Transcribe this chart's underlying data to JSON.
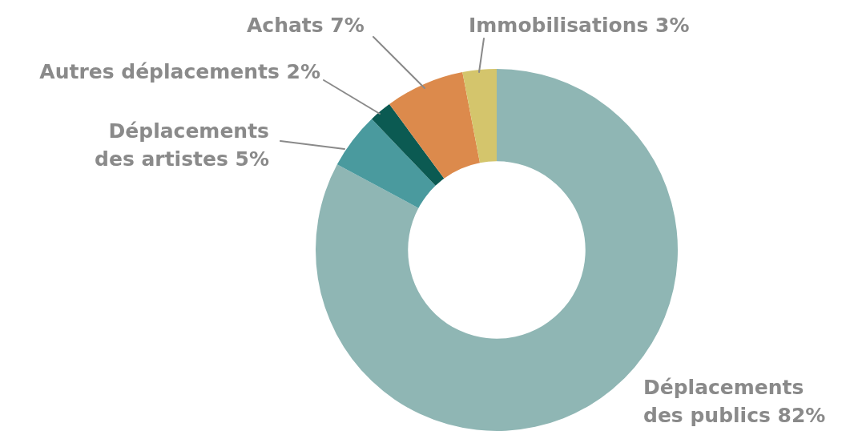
{
  "chart_data": {
    "type": "donut",
    "categories": [
      "Déplacements des publics",
      "Déplacements des artistes",
      "Autres déplacements",
      "Achats",
      "Immobilisations"
    ],
    "values": [
      82,
      5,
      2,
      7,
      3
    ],
    "value_labels": [
      "82%",
      "5%",
      "2%",
      "7%",
      "3%"
    ],
    "colors": [
      "#8fb6b4",
      "#4a9a9e",
      "#0b5a52",
      "#dc8a4c",
      "#d4c56c"
    ],
    "legend": false
  }
}
